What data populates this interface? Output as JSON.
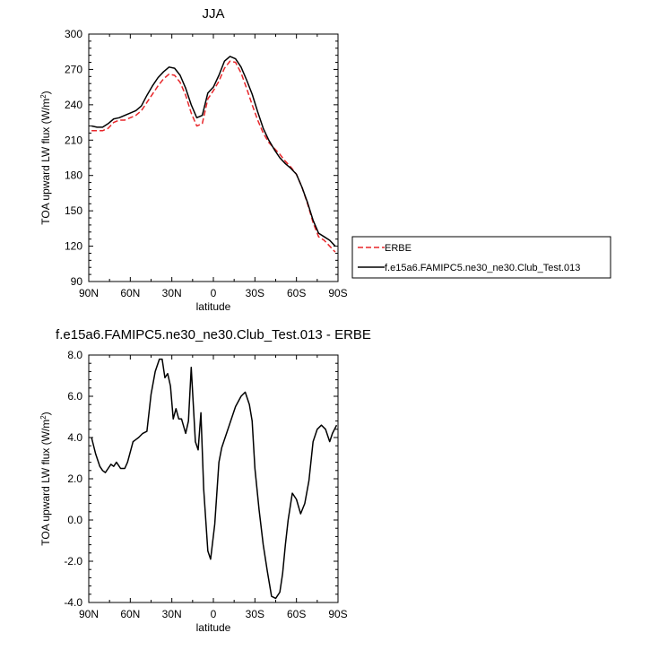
{
  "chart_data": [
    {
      "type": "line",
      "title": "JJA",
      "xlabel": "latitude",
      "ylabel": "TOA upward LW flux (W/m",
      "ylabel_sup": "2",
      "ylabel_close": ")",
      "xlim": [
        90,
        -90
      ],
      "ylim": [
        90,
        300
      ],
      "xticks": [
        90,
        60,
        30,
        0,
        -30,
        -60,
        -90
      ],
      "xticklabels": [
        "90N",
        "60N",
        "30N",
        "0",
        "30S",
        "60S",
        "90S"
      ],
      "yticks": [
        90,
        120,
        150,
        180,
        210,
        240,
        270,
        300
      ],
      "yticklabels": [
        "90",
        "120",
        "150",
        "180",
        "210",
        "240",
        "270",
        "300"
      ],
      "legend_position": "right",
      "series": [
        {
          "name": "ERBE",
          "color": "#e8262a",
          "style": "dashed",
          "x": [
            88,
            84,
            80,
            76,
            72,
            68,
            64,
            60,
            56,
            52,
            48,
            44,
            40,
            36,
            32,
            28,
            24,
            20,
            16,
            12,
            8,
            4,
            0,
            -4,
            -8,
            -12,
            -16,
            -20,
            -24,
            -28,
            -32,
            -36,
            -40,
            -44,
            -48,
            -52,
            -56,
            -60,
            -64,
            -68,
            -72,
            -76,
            -80,
            -84,
            -88
          ],
          "y": [
            218,
            218,
            218,
            220,
            225,
            227,
            227,
            229,
            231,
            235,
            242,
            249,
            256,
            262,
            266,
            265,
            259,
            248,
            233,
            222,
            224,
            245,
            252,
            260,
            271,
            277,
            276,
            267,
            254,
            240,
            227,
            216,
            208,
            203,
            198,
            192,
            187,
            181,
            170,
            156,
            140,
            128,
            125,
            120,
            115
          ]
        },
        {
          "name": "f.e15a6.FAMIPC5.ne30_ne30.Club_Test.013",
          "color": "#000000",
          "style": "solid",
          "x": [
            88,
            84,
            80,
            76,
            72,
            68,
            64,
            60,
            56,
            52,
            48,
            44,
            40,
            36,
            32,
            28,
            24,
            20,
            16,
            12,
            8,
            4,
            0,
            -4,
            -8,
            -12,
            -16,
            -20,
            -24,
            -28,
            -32,
            -36,
            -40,
            -44,
            -48,
            -52,
            -56,
            -60,
            -64,
            -68,
            -72,
            -76,
            -80,
            -84,
            -88
          ],
          "y": [
            222,
            221,
            221,
            224,
            228,
            229,
            231,
            233,
            235,
            239,
            248,
            256,
            263,
            268,
            272,
            271,
            265,
            254,
            240,
            229,
            231,
            250,
            255,
            265,
            277,
            281,
            279,
            272,
            261,
            249,
            234,
            220,
            210,
            202,
            195,
            190,
            186,
            181,
            170,
            157,
            142,
            131,
            128,
            125,
            120
          ]
        }
      ]
    },
    {
      "type": "line",
      "title": "f.e15a6.FAMIPC5.ne30_ne30.Club_Test.013 - ERBE",
      "xlabel": "latitude",
      "ylabel": "TOA upward LW flux (W/m",
      "ylabel_sup": "2",
      "ylabel_close": ")",
      "xlim": [
        90,
        -90
      ],
      "ylim": [
        -4.0,
        8.0
      ],
      "xticks": [
        90,
        60,
        30,
        0,
        -30,
        -60,
        -90
      ],
      "xticklabels": [
        "90N",
        "60N",
        "30N",
        "0",
        "30S",
        "60S",
        "90S"
      ],
      "yticks": [
        -4,
        -2,
        0,
        2,
        4,
        6,
        8
      ],
      "yticklabels": [
        "-4.0",
        "-2.0",
        "0.0",
        "2.0",
        "4.0",
        "6.0",
        "8.0"
      ],
      "series": [
        {
          "name": "",
          "color": "#000000",
          "style": "solid",
          "x": [
            88,
            85,
            82,
            80,
            78,
            76,
            74,
            72,
            70,
            67,
            64,
            62,
            58,
            56,
            54,
            51,
            48,
            45,
            42,
            39,
            37,
            35,
            33,
            31,
            29,
            27,
            25,
            23,
            20,
            18,
            16,
            13,
            11,
            9,
            7,
            4,
            2,
            -1,
            -4,
            -6,
            -8,
            -10,
            -13,
            -16,
            -20,
            -23,
            -26,
            -28,
            -30,
            -33,
            -36,
            -39,
            -42,
            -45,
            -48,
            -50,
            -52,
            -54,
            -57,
            -60,
            -63,
            -66,
            -69,
            -72,
            -75,
            -78,
            -81,
            -84,
            -86,
            -89
          ],
          "y": [
            4.0,
            3.2,
            2.6,
            2.4,
            2.3,
            2.5,
            2.7,
            2.6,
            2.8,
            2.5,
            2.5,
            2.8,
            3.8,
            3.9,
            4.0,
            4.2,
            4.3,
            6.1,
            7.2,
            7.8,
            7.8,
            6.9,
            7.1,
            6.5,
            4.9,
            5.4,
            4.9,
            4.9,
            4.2,
            4.8,
            7.4,
            3.8,
            3.4,
            5.2,
            1.5,
            -1.5,
            -1.9,
            -0.2,
            2.8,
            3.5,
            3.9,
            4.3,
            4.9,
            5.5,
            6.0,
            6.2,
            5.6,
            4.8,
            2.5,
            0.5,
            -1.2,
            -2.5,
            -3.7,
            -3.8,
            -3.5,
            -2.6,
            -1.2,
            0.0,
            1.3,
            1.0,
            0.3,
            0.8,
            1.9,
            3.8,
            4.4,
            4.6,
            4.4,
            3.8,
            4.2,
            4.6
          ]
        }
      ]
    }
  ]
}
